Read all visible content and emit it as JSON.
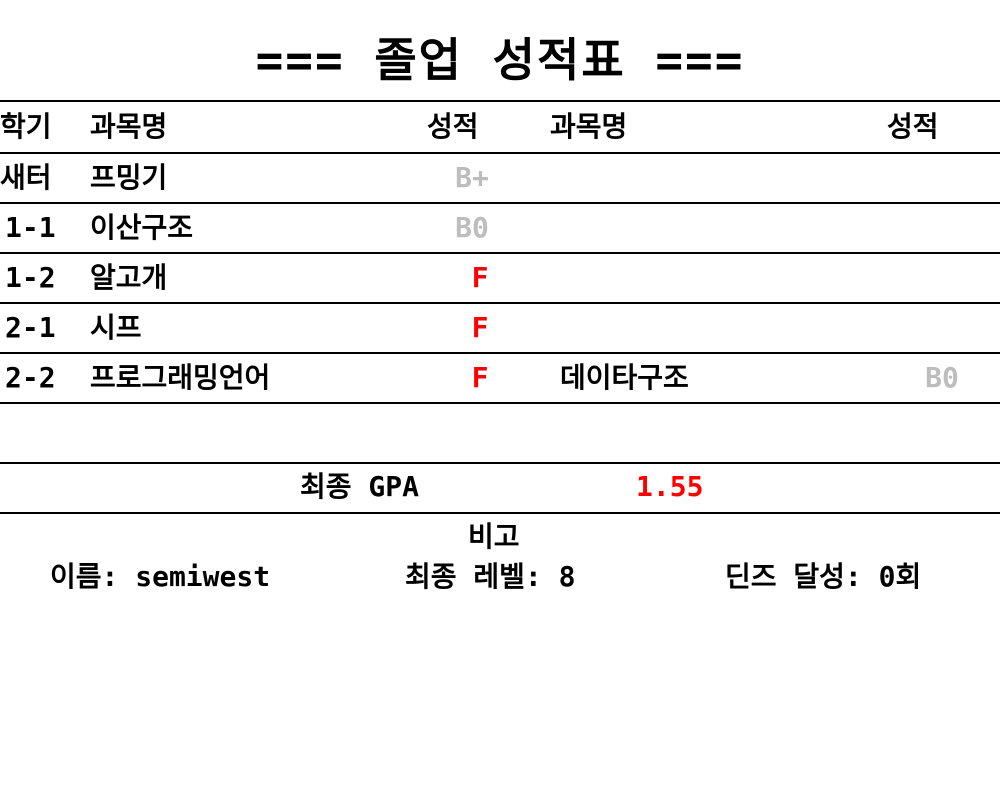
{
  "title": "=== 졸업 성적표 ===",
  "headers": {
    "semester": "학기",
    "subject1": "과목명",
    "grade1": "성적",
    "subject2": "과목명",
    "grade2": "성적"
  },
  "rows": [
    {
      "semester": "새터",
      "subject1": "프밍기",
      "grade1": "B+",
      "subject2": "",
      "grade2": ""
    },
    {
      "semester": "1-1",
      "subject1": "이산구조",
      "grade1": "B0",
      "subject2": "",
      "grade2": ""
    },
    {
      "semester": "1-2",
      "subject1": "알고개",
      "grade1": "F",
      "subject2": "",
      "grade2": ""
    },
    {
      "semester": "2-1",
      "subject1": "시프",
      "grade1": "F",
      "subject2": "",
      "grade2": ""
    },
    {
      "semester": "2-2",
      "subject1": "프로그래밍언어",
      "grade1": "F",
      "subject2": "데이타구조",
      "grade2": "B0"
    }
  ],
  "gpa": {
    "label": "최종 GPA",
    "value": "1.55"
  },
  "remarks": {
    "title": "비고",
    "name": "이름: semiwest",
    "level": "최종 레벨: 8",
    "dins": "딘즈 달성: 0회"
  },
  "colors": {
    "fail": "#ff0000",
    "pass": "#bdbdbd",
    "gpa": "#ff0000"
  }
}
